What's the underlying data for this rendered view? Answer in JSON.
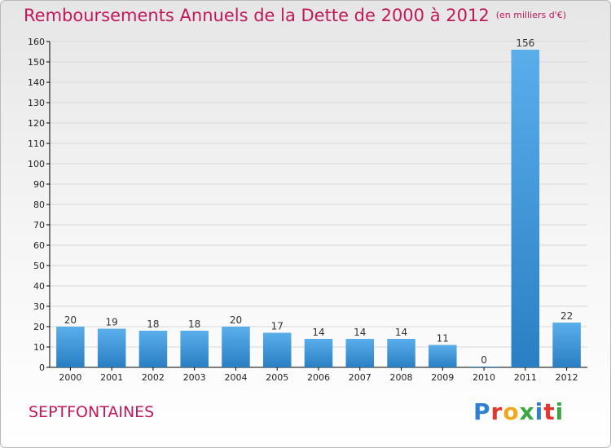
{
  "header": {
    "title": "Remboursements Annuels de la Dette de 2000 à 2012",
    "unit": "(en milliers d'€)"
  },
  "footer": {
    "commune": "SEPTFONTAINES",
    "logo_text": "Proxiti"
  },
  "colors": {
    "title": "#c0185a",
    "bar_light": "#5aaeea",
    "bar_dark": "#2a7fc4",
    "grid": "#d8d8d8",
    "axis": "#000000"
  },
  "chart_data": {
    "type": "bar",
    "categories": [
      "2000",
      "2001",
      "2002",
      "2003",
      "2004",
      "2005",
      "2006",
      "2007",
      "2008",
      "2009",
      "2010",
      "2011",
      "2012"
    ],
    "values": [
      20,
      19,
      18,
      18,
      20,
      17,
      14,
      14,
      14,
      11,
      0,
      156,
      22
    ],
    "ylim": [
      0,
      160
    ],
    "yticks": [
      0,
      10,
      20,
      30,
      40,
      50,
      60,
      70,
      80,
      90,
      100,
      110,
      120,
      130,
      140,
      150,
      160
    ],
    "grid": true,
    "data_labels": true
  }
}
